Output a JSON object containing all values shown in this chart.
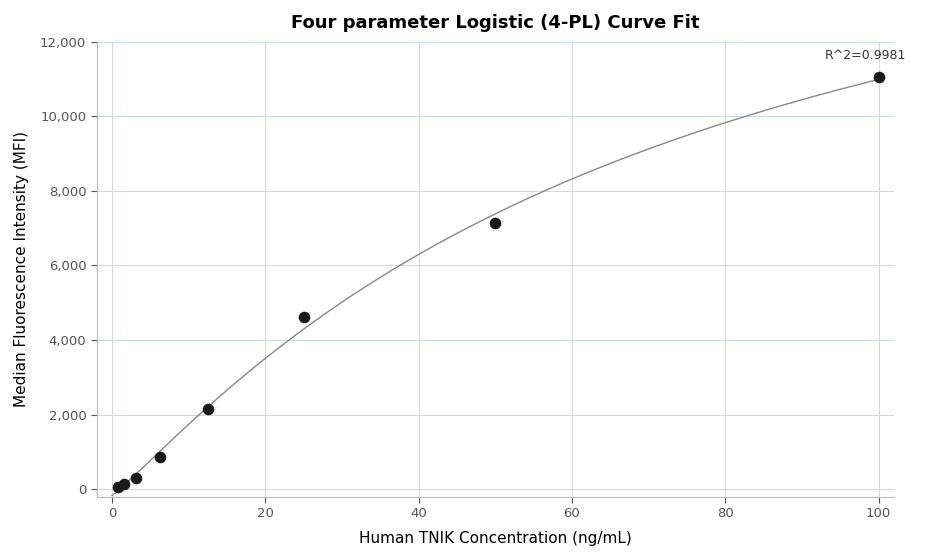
{
  "title": "Four parameter Logistic (4-PL) Curve Fit",
  "xlabel": "Human TNIK Concentration (ng/mL)",
  "ylabel": "Median Fluorescence Intensity (MFI)",
  "r_squared": "R^2=0.9981",
  "scatter_x": [
    0.781,
    1.563,
    3.125,
    6.25,
    12.5,
    25.0,
    50.0,
    100.0
  ],
  "scatter_y": [
    70,
    150,
    310,
    850,
    2150,
    4620,
    7150,
    11050
  ],
  "dot_color": "#1a1a1a",
  "dot_size": 70,
  "line_color": "#888888",
  "background_color": "#ffffff",
  "grid_color": "#ccd9e8",
  "xlim": [
    -2,
    102
  ],
  "ylim": [
    -200,
    12000
  ],
  "yticks": [
    0,
    2000,
    4000,
    6000,
    8000,
    10000,
    12000
  ],
  "xticks": [
    0,
    20,
    40,
    60,
    80,
    100
  ],
  "title_fontsize": 13,
  "label_fontsize": 11,
  "r2_x": 93,
  "r2_y": 11450,
  "curve_4pl_A": -500,
  "curve_4pl_B": 0.72,
  "curve_4pl_C": 85000,
  "curve_4pl_D": 18000
}
